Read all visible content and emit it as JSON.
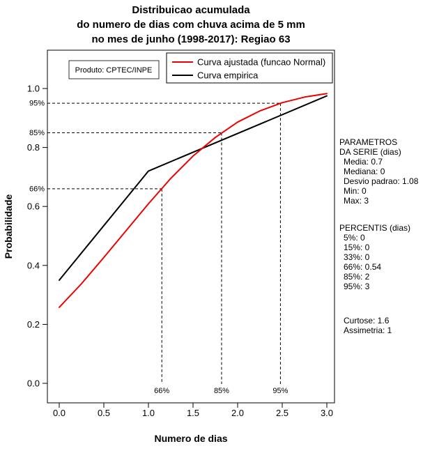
{
  "chart_data": {
    "type": "line",
    "title": "Distribuicao acumulada do numero de dias com chuva acima de 5 mm no mes de junho (1998-2017): Regiao 63",
    "title_lines": [
      "Distribuicao acumulada",
      "do numero de dias com chuva acima de 5 mm",
      "no mes de junho (1998-2017): Regiao 63"
    ],
    "xlabel": "Numero de dias",
    "ylabel": "Probabilidade",
    "watermark": "Produto: CPTEC/INPE",
    "xlim": [
      0,
      3
    ],
    "ylim": [
      0,
      1.05
    ],
    "grid": false,
    "legend_position": "top-right-inside",
    "x_ticks": [
      0,
      0.5,
      1,
      1.5,
      2,
      2.5,
      3
    ],
    "x_tick_labels": [
      "0.0",
      "0.5",
      "1.0",
      "1.5",
      "2.0",
      "2.5",
      "3.0"
    ],
    "y_ticks": [
      0,
      0.2,
      0.4,
      0.6,
      0.8,
      1.0
    ],
    "y_tick_labels": [
      "0.0",
      "0.2",
      "0.4",
      "0.6",
      "0.8",
      "1.0"
    ],
    "series": [
      {
        "name": "Curva ajustada (funcao Normal)",
        "color": "#ee0000",
        "x": [
          0,
          0.25,
          0.5,
          0.75,
          1,
          1.25,
          1.5,
          1.75,
          2,
          2.25,
          2.5,
          2.75,
          3
        ],
        "y": [
          0.258,
          0.338,
          0.427,
          0.518,
          0.609,
          0.695,
          0.771,
          0.834,
          0.886,
          0.924,
          0.952,
          0.971,
          0.983
        ]
      },
      {
        "name": "Curva empirica",
        "color": "#000000",
        "x": [
          0,
          1,
          3
        ],
        "y": [
          0.35,
          0.72,
          0.975
        ]
      }
    ],
    "percentile_guides": [
      {
        "label": "66%",
        "x": 1.15,
        "y": 0.66
      },
      {
        "label": "85%",
        "x": 1.82,
        "y": 0.85
      },
      {
        "label": "95%",
        "x": 2.48,
        "y": 0.95
      }
    ]
  },
  "stats_panel": {
    "sections": [
      {
        "heading": [
          "PARAMETROS",
          "DA SERIE (dias)"
        ],
        "items": [
          "Media: 0.7",
          "Mediana: 0",
          "Desvio padrao: 1.08",
          "Min: 0",
          "Max: 3"
        ]
      },
      {
        "heading": [
          "PERCENTIS (dias)"
        ],
        "items": [
          "5%: 0",
          "15%: 0",
          "33%: 0",
          "66%: 0.54",
          "85%: 2",
          "95%: 3"
        ]
      },
      {
        "heading": [],
        "items": [
          "Curtose: 1.6",
          "Assimetria: 1"
        ]
      }
    ]
  }
}
